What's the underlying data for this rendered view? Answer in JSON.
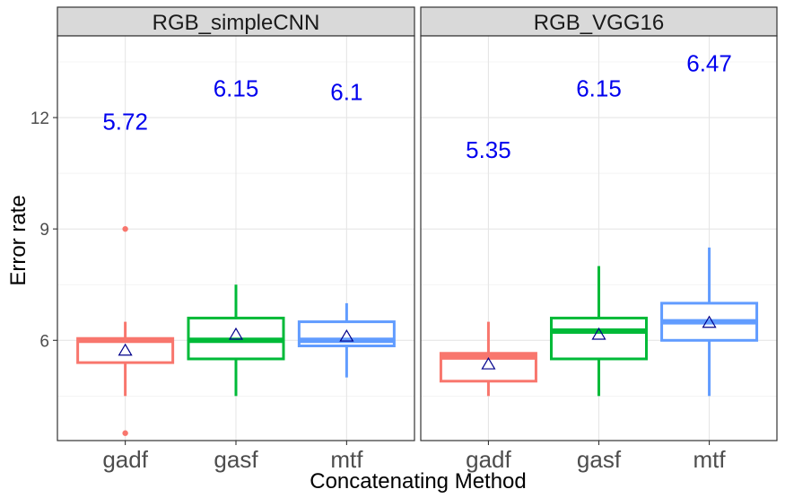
{
  "chart_data": {
    "type": "box",
    "xlabel": "Concatenating Method",
    "ylabel": "Error rate",
    "ylim": [
      3.3,
      14.2
    ],
    "yticks": [
      6,
      9,
      12
    ],
    "grid": true,
    "mean_marker": "triangle",
    "categories": [
      "gadf",
      "gasf",
      "mtf"
    ],
    "colors": {
      "gadf": "#F8766D",
      "gasf": "#00BA38",
      "mtf": "#619CFF",
      "mean_label": "#0000EE",
      "mean_marker": "#00008B"
    },
    "panels": [
      {
        "title": "RGB_simpleCNN",
        "boxes": [
          {
            "category": "gadf",
            "whisker_low": 4.5,
            "q1": 5.4,
            "median": 6.0,
            "q3": 6.05,
            "whisker_high": 6.5,
            "mean": 5.72,
            "mean_label": "5.72",
            "outliers": [
              9.0,
              3.5
            ]
          },
          {
            "category": "gasf",
            "whisker_low": 4.5,
            "q1": 5.5,
            "median": 6.0,
            "q3": 6.6,
            "whisker_high": 7.5,
            "mean": 6.15,
            "mean_label": "6.15",
            "outliers": []
          },
          {
            "category": "mtf",
            "whisker_low": 5.0,
            "q1": 5.85,
            "median": 6.0,
            "q3": 6.5,
            "whisker_high": 7.0,
            "mean": 6.1,
            "mean_label": "6.1",
            "outliers": []
          }
        ]
      },
      {
        "title": "RGB_VGG16",
        "boxes": [
          {
            "category": "gadf",
            "whisker_low": 4.5,
            "q1": 4.9,
            "median": 5.55,
            "q3": 5.65,
            "whisker_high": 6.5,
            "mean": 5.35,
            "mean_label": "5.35",
            "outliers": []
          },
          {
            "category": "gasf",
            "whisker_low": 4.5,
            "q1": 5.5,
            "median": 6.25,
            "q3": 6.6,
            "whisker_high": 8.0,
            "mean": 6.15,
            "mean_label": "6.15",
            "outliers": []
          },
          {
            "category": "mtf",
            "whisker_low": 4.5,
            "q1": 6.0,
            "median": 6.5,
            "q3": 7.0,
            "whisker_high": 8.5,
            "mean": 6.47,
            "mean_label": "6.47",
            "outliers": []
          }
        ]
      }
    ]
  }
}
